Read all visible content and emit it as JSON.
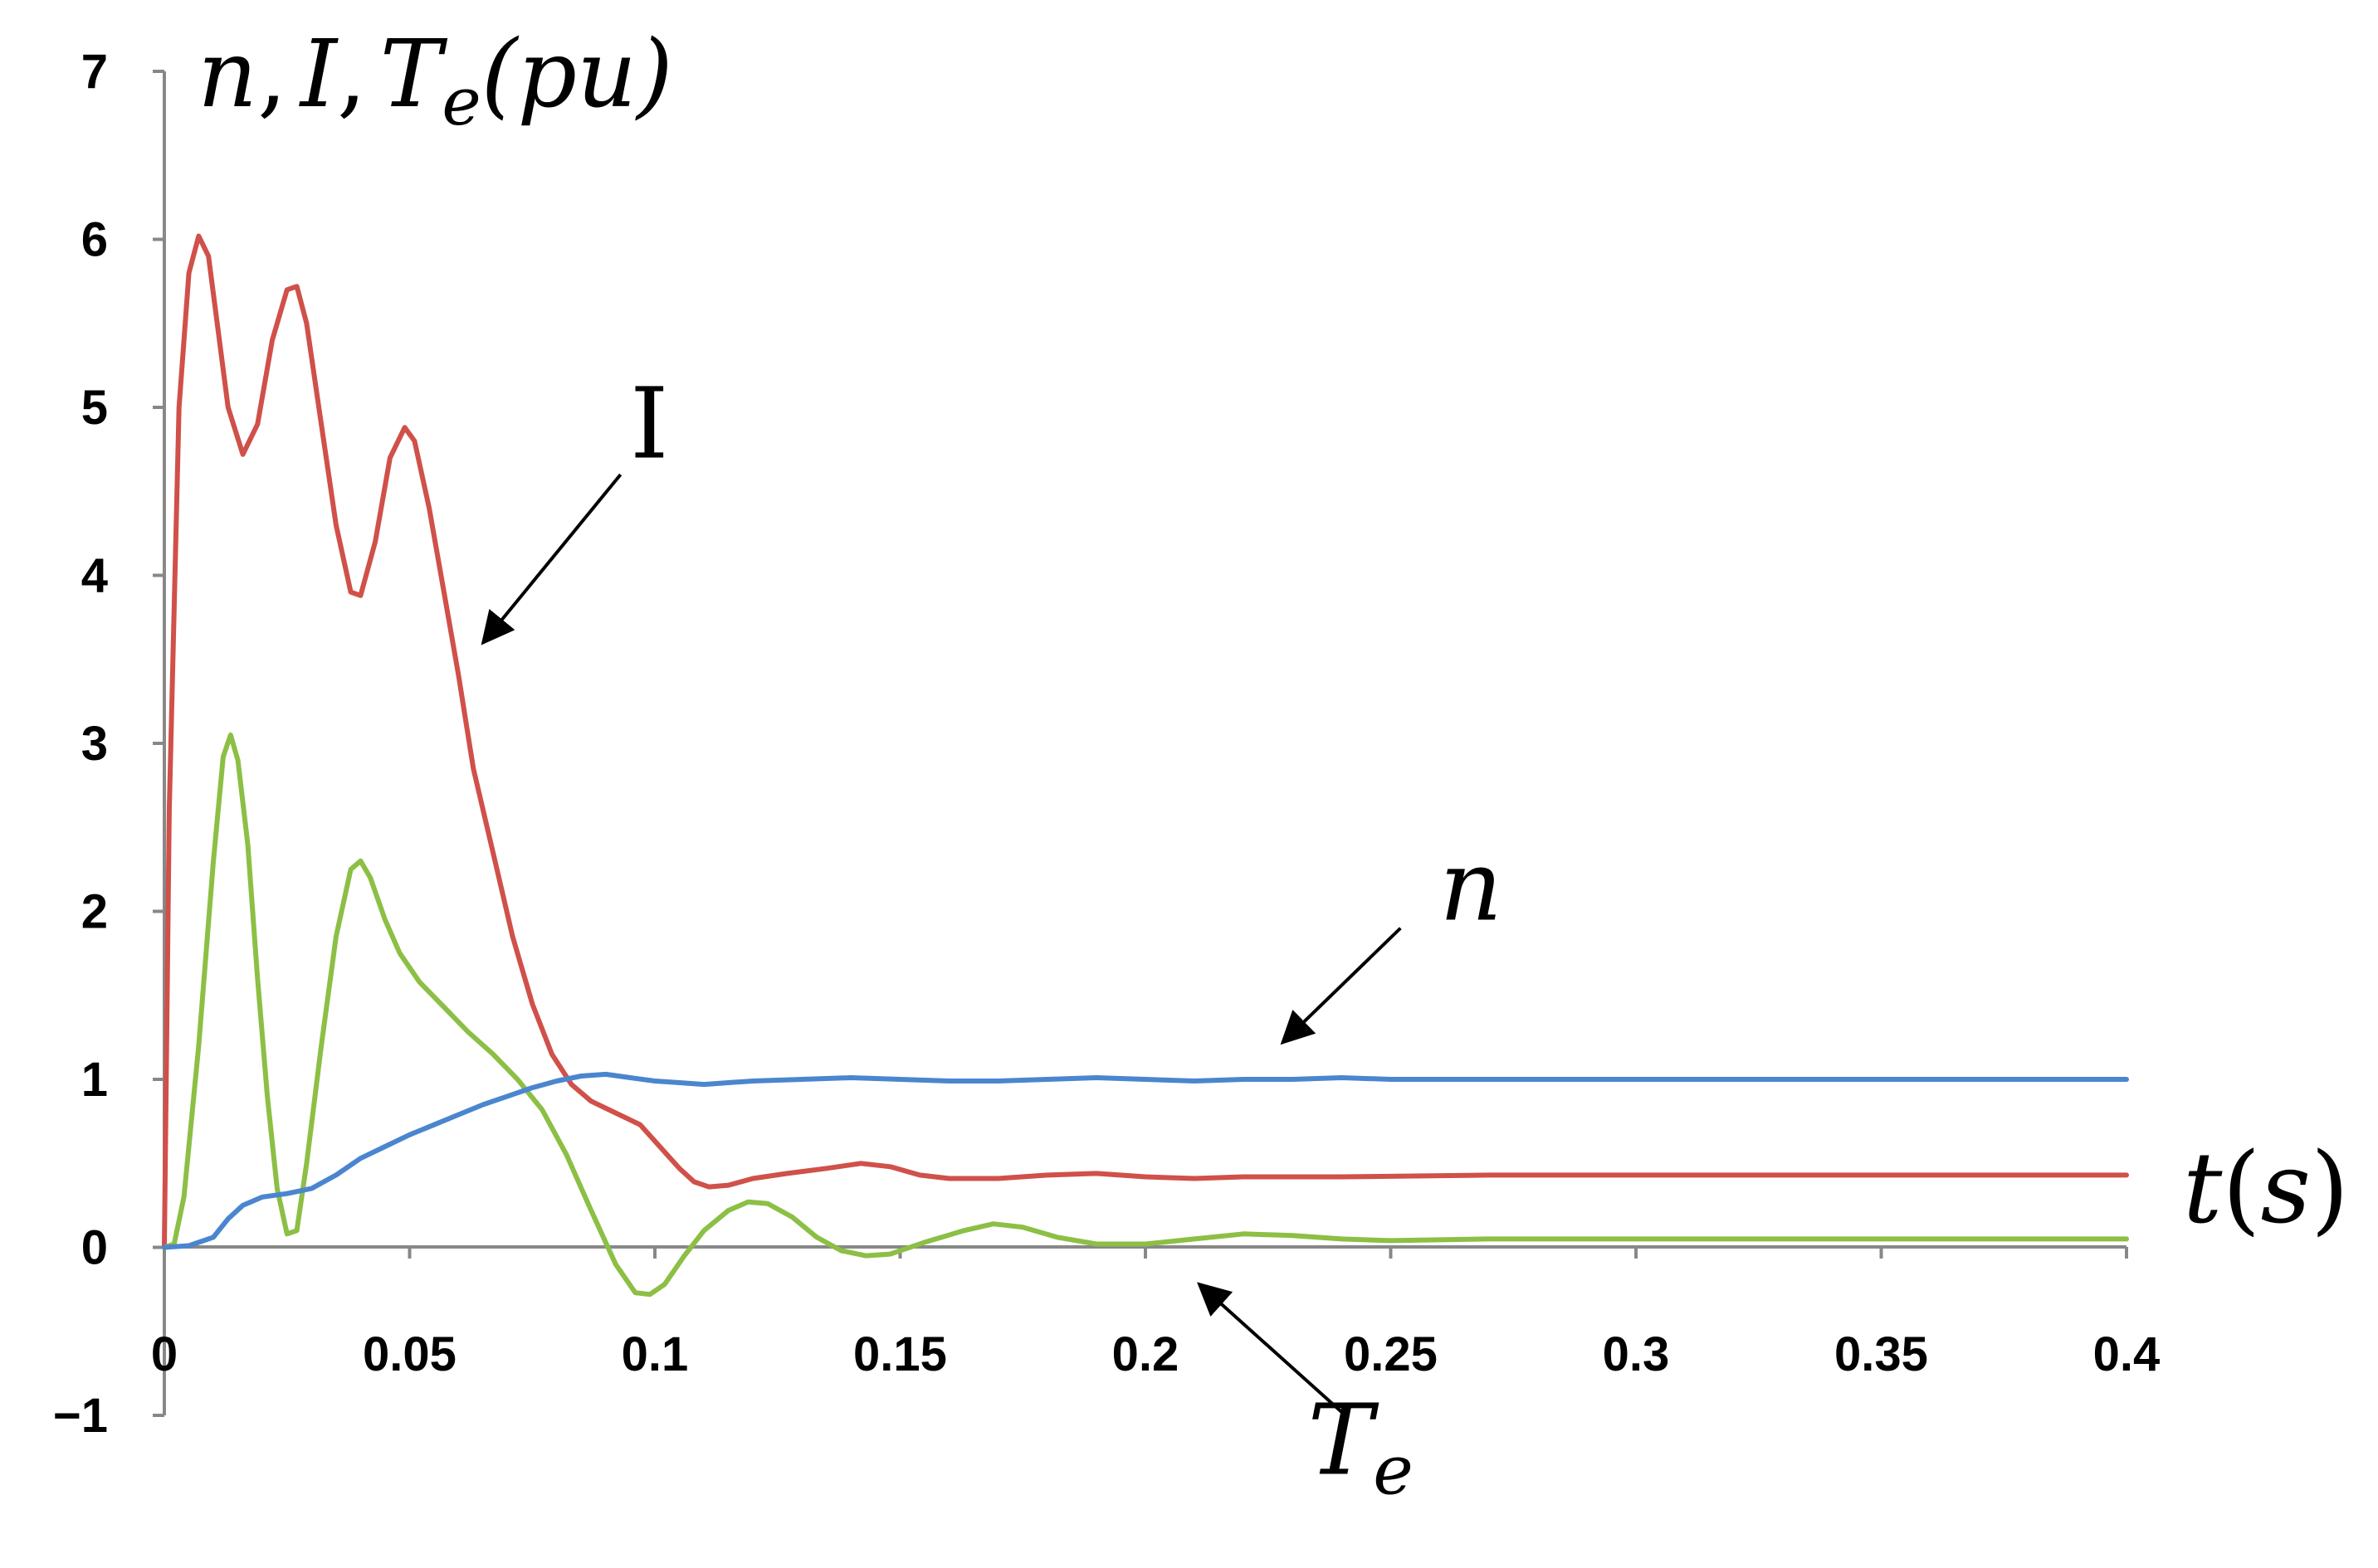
{
  "chart_data": {
    "type": "line",
    "title": "",
    "ylabel": "n, I, T_e(pu)",
    "ylabel_parts": {
      "n": "n",
      "comma": ",",
      "I": "I",
      "T": "T",
      "sub_e": "e",
      "unit": "(pu)"
    },
    "xlabel": "t(s)",
    "xlabel_parts": {
      "t": "t",
      "open": "(",
      "s": "s",
      "close": ")"
    },
    "xlim": [
      0,
      0.4
    ],
    "ylim": [
      -1,
      7
    ],
    "x_ticks": [
      "0",
      "0.05",
      "0.1",
      "0.15",
      "0.2",
      "0.25",
      "0.3",
      "0.35",
      "0.4"
    ],
    "x_tick_values": [
      0,
      0.05,
      0.1,
      0.15,
      0.2,
      0.25,
      0.3,
      0.35,
      0.4
    ],
    "y_ticks": [
      "7",
      "6",
      "5",
      "4",
      "3",
      "2",
      "1",
      "0",
      "−1"
    ],
    "y_tick_values": [
      7,
      6,
      5,
      4,
      3,
      2,
      1,
      0,
      -1
    ],
    "grid": false,
    "series": [
      {
        "name": "I",
        "color": "#d0504a",
        "points": [
          [
            0,
            0
          ],
          [
            0.001,
            2.6
          ],
          [
            0.003,
            5.0
          ],
          [
            0.005,
            5.8
          ],
          [
            0.007,
            6.02
          ],
          [
            0.009,
            5.9
          ],
          [
            0.011,
            5.45
          ],
          [
            0.013,
            5.0
          ],
          [
            0.016,
            4.72
          ],
          [
            0.019,
            4.9
          ],
          [
            0.022,
            5.4
          ],
          [
            0.025,
            5.7
          ],
          [
            0.027,
            5.72
          ],
          [
            0.029,
            5.5
          ],
          [
            0.032,
            4.9
          ],
          [
            0.035,
            4.3
          ],
          [
            0.038,
            3.9
          ],
          [
            0.04,
            3.88
          ],
          [
            0.043,
            4.2
          ],
          [
            0.046,
            4.7
          ],
          [
            0.049,
            4.88
          ],
          [
            0.051,
            4.8
          ],
          [
            0.054,
            4.4
          ],
          [
            0.057,
            3.9
          ],
          [
            0.06,
            3.4
          ],
          [
            0.063,
            2.85
          ],
          [
            0.067,
            2.35
          ],
          [
            0.071,
            1.85
          ],
          [
            0.075,
            1.45
          ],
          [
            0.079,
            1.15
          ],
          [
            0.083,
            0.97
          ],
          [
            0.087,
            0.87
          ],
          [
            0.092,
            0.8
          ],
          [
            0.097,
            0.73
          ],
          [
            0.101,
            0.6
          ],
          [
            0.105,
            0.47
          ],
          [
            0.108,
            0.39
          ],
          [
            0.111,
            0.36
          ],
          [
            0.115,
            0.37
          ],
          [
            0.12,
            0.41
          ],
          [
            0.127,
            0.44
          ],
          [
            0.135,
            0.47
          ],
          [
            0.142,
            0.5
          ],
          [
            0.148,
            0.48
          ],
          [
            0.154,
            0.43
          ],
          [
            0.16,
            0.41
          ],
          [
            0.17,
            0.41
          ],
          [
            0.18,
            0.43
          ],
          [
            0.19,
            0.44
          ],
          [
            0.2,
            0.42
          ],
          [
            0.21,
            0.41
          ],
          [
            0.22,
            0.42
          ],
          [
            0.24,
            0.42
          ],
          [
            0.27,
            0.43
          ],
          [
            0.3,
            0.43
          ],
          [
            0.35,
            0.43
          ],
          [
            0.4,
            0.43
          ]
        ]
      },
      {
        "name": "T_e",
        "color": "#8cbf45",
        "points": [
          [
            0,
            0
          ],
          [
            0.002,
            0.02
          ],
          [
            0.004,
            0.3
          ],
          [
            0.007,
            1.2
          ],
          [
            0.01,
            2.3
          ],
          [
            0.012,
            2.92
          ],
          [
            0.0135,
            3.05
          ],
          [
            0.015,
            2.9
          ],
          [
            0.017,
            2.4
          ],
          [
            0.019,
            1.6
          ],
          [
            0.021,
            0.9
          ],
          [
            0.023,
            0.35
          ],
          [
            0.025,
            0.08
          ],
          [
            0.027,
            0.1
          ],
          [
            0.029,
            0.5
          ],
          [
            0.032,
            1.2
          ],
          [
            0.035,
            1.85
          ],
          [
            0.038,
            2.25
          ],
          [
            0.04,
            2.3
          ],
          [
            0.042,
            2.2
          ],
          [
            0.045,
            1.95
          ],
          [
            0.048,
            1.75
          ],
          [
            0.052,
            1.58
          ],
          [
            0.057,
            1.43
          ],
          [
            0.062,
            1.28
          ],
          [
            0.067,
            1.15
          ],
          [
            0.072,
            1.0
          ],
          [
            0.077,
            0.82
          ],
          [
            0.082,
            0.55
          ],
          [
            0.087,
            0.22
          ],
          [
            0.092,
            -0.1
          ],
          [
            0.096,
            -0.27
          ],
          [
            0.099,
            -0.28
          ],
          [
            0.102,
            -0.22
          ],
          [
            0.106,
            -0.05
          ],
          [
            0.11,
            0.1
          ],
          [
            0.115,
            0.22
          ],
          [
            0.119,
            0.27
          ],
          [
            0.123,
            0.26
          ],
          [
            0.128,
            0.18
          ],
          [
            0.133,
            0.06
          ],
          [
            0.138,
            -0.02
          ],
          [
            0.143,
            -0.05
          ],
          [
            0.148,
            -0.04
          ],
          [
            0.155,
            0.03
          ],
          [
            0.163,
            0.1
          ],
          [
            0.169,
            0.14
          ],
          [
            0.175,
            0.12
          ],
          [
            0.182,
            0.06
          ],
          [
            0.19,
            0.02
          ],
          [
            0.2,
            0.02
          ],
          [
            0.21,
            0.05
          ],
          [
            0.22,
            0.08
          ],
          [
            0.23,
            0.07
          ],
          [
            0.24,
            0.05
          ],
          [
            0.25,
            0.04
          ],
          [
            0.27,
            0.05
          ],
          [
            0.3,
            0.05
          ],
          [
            0.35,
            0.05
          ],
          [
            0.4,
            0.05
          ]
        ]
      },
      {
        "name": "n",
        "color": "#4a86cf",
        "points": [
          [
            0,
            0
          ],
          [
            0.005,
            0.01
          ],
          [
            0.01,
            0.06
          ],
          [
            0.013,
            0.17
          ],
          [
            0.016,
            0.25
          ],
          [
            0.02,
            0.3
          ],
          [
            0.025,
            0.32
          ],
          [
            0.03,
            0.35
          ],
          [
            0.035,
            0.43
          ],
          [
            0.04,
            0.53
          ],
          [
            0.045,
            0.6
          ],
          [
            0.05,
            0.67
          ],
          [
            0.055,
            0.73
          ],
          [
            0.06,
            0.79
          ],
          [
            0.065,
            0.85
          ],
          [
            0.07,
            0.9
          ],
          [
            0.075,
            0.95
          ],
          [
            0.08,
            0.99
          ],
          [
            0.085,
            1.02
          ],
          [
            0.09,
            1.03
          ],
          [
            0.095,
            1.01
          ],
          [
            0.1,
            0.99
          ],
          [
            0.105,
            0.98
          ],
          [
            0.11,
            0.97
          ],
          [
            0.115,
            0.98
          ],
          [
            0.12,
            0.99
          ],
          [
            0.13,
            1.0
          ],
          [
            0.14,
            1.01
          ],
          [
            0.15,
            1.0
          ],
          [
            0.16,
            0.99
          ],
          [
            0.17,
            0.99
          ],
          [
            0.18,
            1.0
          ],
          [
            0.19,
            1.01
          ],
          [
            0.2,
            1.0
          ],
          [
            0.21,
            0.99
          ],
          [
            0.22,
            1.0
          ],
          [
            0.23,
            1.0
          ],
          [
            0.24,
            1.01
          ],
          [
            0.25,
            1.0
          ],
          [
            0.27,
            1.0
          ],
          [
            0.3,
            1.0
          ],
          [
            0.35,
            1.0
          ],
          [
            0.4,
            1.0
          ]
        ]
      }
    ],
    "annotations": [
      {
        "label": "I",
        "points_to": "I",
        "tip": [
          0.065,
          3.6
        ],
        "tail": [
          0.093,
          4.6
        ],
        "text_at": [
          0.1,
          4.75
        ]
      },
      {
        "label": "n",
        "points_to": "n",
        "tip": [
          0.228,
          1.22
        ],
        "tail": [
          0.252,
          1.9
        ],
        "text_at": [
          0.265,
          2.05
        ]
      },
      {
        "label": "T_e",
        "points_to": "T_e",
        "tip": [
          0.211,
          -0.22
        ],
        "tail": [
          0.24,
          -0.98
        ],
        "text_at": [
          0.25,
          -1.2
        ]
      }
    ]
  }
}
